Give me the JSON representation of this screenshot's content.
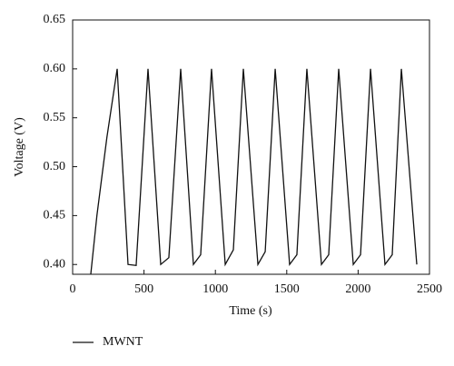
{
  "chart_data": {
    "type": "line",
    "x_label": "Time (s)",
    "y_label": "Voltage (V)",
    "x": [
      127,
      170,
      240,
      312,
      388,
      445,
      528,
      617,
      674,
      757,
      846,
      897,
      973,
      1069,
      1126,
      1196,
      1298,
      1349,
      1419,
      1520,
      1571,
      1641,
      1743,
      1794,
      1864,
      1966,
      2017,
      2087,
      2188,
      2239,
      2303,
      2411
    ],
    "series": [
      {
        "name": "MWNT",
        "color": "#111111",
        "values": [
          0.39,
          0.45,
          0.53,
          0.6,
          0.4,
          0.399,
          0.6,
          0.4,
          0.407,
          0.6,
          0.4,
          0.41,
          0.6,
          0.4,
          0.415,
          0.6,
          0.4,
          0.413,
          0.6,
          0.4,
          0.41,
          0.6,
          0.4,
          0.41,
          0.6,
          0.4,
          0.41,
          0.6,
          0.4,
          0.41,
          0.6,
          0.4
        ]
      }
    ],
    "xlim": [
      0,
      2500
    ],
    "xticks": [
      0,
      500,
      1000,
      1500,
      2000,
      2500
    ],
    "ylim": [
      0.39,
      0.65
    ],
    "yticks": [
      {
        "value": 0.4,
        "label": "0.40"
      },
      0.45,
      {
        "value": 0.5,
        "label": "0.50"
      },
      0.55,
      {
        "value": 0.6,
        "label": "0.60"
      },
      0.65
    ],
    "grid": false,
    "legend": "bottom-left"
  }
}
